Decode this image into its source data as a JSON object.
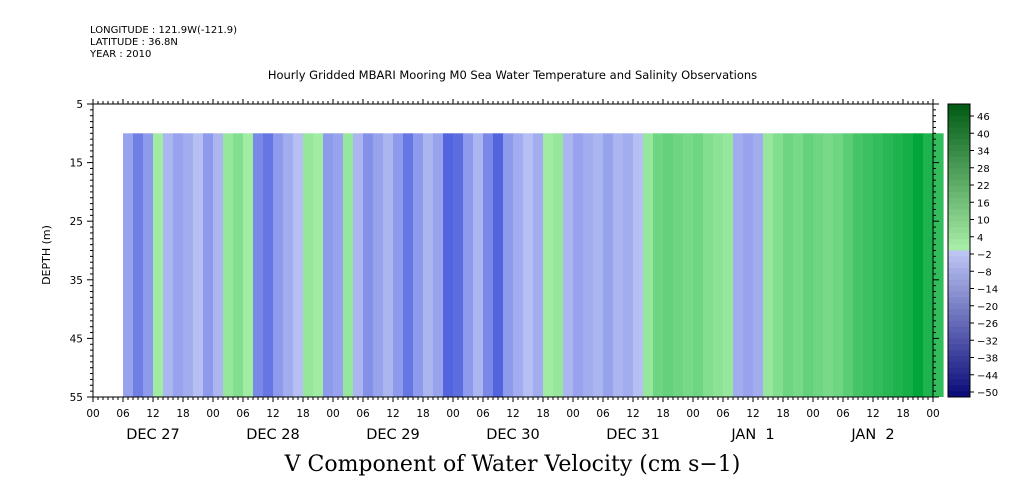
{
  "header": {
    "longitude": "LONGITUDE : 121.9W(-121.9)",
    "latitude": "LATITUDE : 36.8N",
    "year": "YEAR : 2010"
  },
  "chart_data": {
    "type": "heatmap",
    "title": "Hourly Gridded MBARI Mooring M0 Sea Water Temperature and Salinity Observations",
    "xlabel": "V Component of Water Velocity (cm s−1)",
    "ylabel": "DEPTH (m)",
    "y_range": [
      5,
      55
    ],
    "y_ticks": [
      5,
      15,
      25,
      35,
      45,
      55
    ],
    "y_inverted": true,
    "data_depth_range": [
      10,
      55
    ],
    "x_range_hours": [
      0,
      168
    ],
    "data_start_hour": 6,
    "x_hour_tick_labels": [
      "00",
      "06",
      "12",
      "18",
      "00",
      "06",
      "12",
      "18",
      "00",
      "06",
      "12",
      "18",
      "00",
      "06",
      "12",
      "18",
      "00",
      "06",
      "12",
      "18",
      "00",
      "06",
      "12",
      "18",
      "00",
      "06",
      "12",
      "18",
      "00"
    ],
    "x_day_labels": [
      "DEC 27",
      "DEC 28",
      "DEC 29",
      "DEC 30",
      "DEC 31",
      "JAN  1",
      "JAN  2"
    ],
    "colorbar_levels": [
      "46",
      "40",
      "34",
      "28",
      "22",
      "16",
      "10",
      "4",
      "−2",
      "−8",
      "−14",
      "−20",
      "−26",
      "−32",
      "−38",
      "−44",
      "−50"
    ],
    "colorbar_range": [
      -50,
      50
    ],
    "colors": {
      "negative": "#2b3fd6",
      "positive": "#00a63a",
      "neutral": "#bfc8f5"
    },
    "columns": [
      {
        "h": 6,
        "v": -8
      },
      {
        "h": 8,
        "v": -16
      },
      {
        "h": 10,
        "v": -10
      },
      {
        "h": 12,
        "v": 2
      },
      {
        "h": 14,
        "v": -4
      },
      {
        "h": 16,
        "v": -8
      },
      {
        "h": 18,
        "v": -6
      },
      {
        "h": 20,
        "v": -2
      },
      {
        "h": 22,
        "v": -10
      },
      {
        "h": 24,
        "v": -4
      },
      {
        "h": 26,
        "v": 4
      },
      {
        "h": 28,
        "v": 8
      },
      {
        "h": 30,
        "v": 2
      },
      {
        "h": 32,
        "v": -14
      },
      {
        "h": 34,
        "v": -18
      },
      {
        "h": 36,
        "v": -10
      },
      {
        "h": 38,
        "v": -6
      },
      {
        "h": 40,
        "v": -2
      },
      {
        "h": 42,
        "v": 4
      },
      {
        "h": 44,
        "v": 2
      },
      {
        "h": 46,
        "v": -10
      },
      {
        "h": 48,
        "v": -8
      },
      {
        "h": 50,
        "v": 4
      },
      {
        "h": 52,
        "v": -4
      },
      {
        "h": 54,
        "v": -12
      },
      {
        "h": 56,
        "v": -8
      },
      {
        "h": 58,
        "v": -4
      },
      {
        "h": 60,
        "v": -10
      },
      {
        "h": 62,
        "v": -18
      },
      {
        "h": 64,
        "v": -10
      },
      {
        "h": 66,
        "v": -4
      },
      {
        "h": 68,
        "v": -8
      },
      {
        "h": 70,
        "v": -22
      },
      {
        "h": 72,
        "v": -20
      },
      {
        "h": 74,
        "v": -10
      },
      {
        "h": 76,
        "v": -4
      },
      {
        "h": 78,
        "v": -14
      },
      {
        "h": 80,
        "v": -22
      },
      {
        "h": 82,
        "v": -10
      },
      {
        "h": 84,
        "v": -6
      },
      {
        "h": 86,
        "v": -2
      },
      {
        "h": 88,
        "v": -6
      },
      {
        "h": 90,
        "v": 2
      },
      {
        "h": 92,
        "v": 4
      },
      {
        "h": 94,
        "v": -4
      },
      {
        "h": 96,
        "v": -8
      },
      {
        "h": 98,
        "v": -6
      },
      {
        "h": 100,
        "v": -4
      },
      {
        "h": 102,
        "v": -8
      },
      {
        "h": 104,
        "v": -4
      },
      {
        "h": 106,
        "v": -6
      },
      {
        "h": 108,
        "v": -2
      },
      {
        "h": 110,
        "v": 4
      },
      {
        "h": 112,
        "v": 12
      },
      {
        "h": 114,
        "v": 14
      },
      {
        "h": 116,
        "v": 12
      },
      {
        "h": 118,
        "v": 10
      },
      {
        "h": 120,
        "v": 12
      },
      {
        "h": 122,
        "v": 8
      },
      {
        "h": 124,
        "v": 6
      },
      {
        "h": 126,
        "v": 4
      },
      {
        "h": 128,
        "v": -6
      },
      {
        "h": 130,
        "v": -8
      },
      {
        "h": 132,
        "v": -6
      },
      {
        "h": 134,
        "v": 4
      },
      {
        "h": 136,
        "v": 8
      },
      {
        "h": 138,
        "v": 12
      },
      {
        "h": 140,
        "v": 10
      },
      {
        "h": 142,
        "v": 14
      },
      {
        "h": 144,
        "v": 12
      },
      {
        "h": 146,
        "v": 10
      },
      {
        "h": 148,
        "v": 12
      },
      {
        "h": 150,
        "v": 16
      },
      {
        "h": 152,
        "v": 20
      },
      {
        "h": 154,
        "v": 22
      },
      {
        "h": 156,
        "v": 24
      },
      {
        "h": 158,
        "v": 26
      },
      {
        "h": 160,
        "v": 28
      },
      {
        "h": 162,
        "v": 30
      },
      {
        "h": 164,
        "v": 34
      },
      {
        "h": 166,
        "v": 28
      },
      {
        "h": 168,
        "v": 24
      }
    ]
  }
}
